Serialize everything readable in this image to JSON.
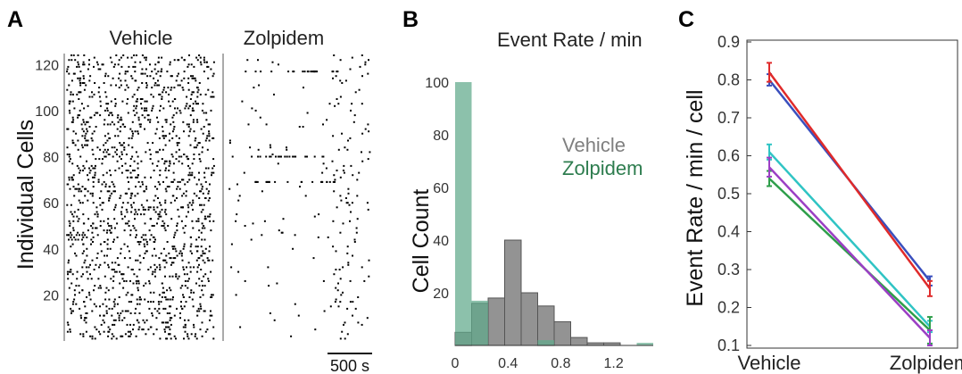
{
  "panel_labels": [
    "A",
    "B",
    "C"
  ],
  "colors": {
    "vehicle_hist": "#808080",
    "zolpidem_hist": "#5fa98a",
    "zolpidem_legend": "#2e7d4f",
    "vehicle_legend": "#7f7f7f"
  },
  "chart_data": [
    {
      "type": "scatter",
      "panel": "A",
      "subtitles": [
        "Vehicle",
        "Zolpidem"
      ],
      "ylabel": "Individual Cells",
      "ylim": [
        0,
        124
      ],
      "yticks": [
        "20",
        "40",
        "60",
        "80",
        "100",
        "120"
      ],
      "n_cells": 124,
      "scalebar_label": "500 s",
      "events_per_cell": {
        "Vehicle": 12,
        "Zolpidem": "sparse"
      }
    },
    {
      "type": "bar",
      "panel": "B",
      "title": "Event Rate / min",
      "ylabel": "Cell Count",
      "xticks": [
        "0",
        "0.4",
        "0.8",
        "1.2"
      ],
      "yticks": [
        "20",
        "40",
        "60",
        "80",
        "100"
      ],
      "xlim": [
        0,
        1.5
      ],
      "ylim": [
        0,
        100
      ],
      "bin_width": 0.125,
      "series": [
        {
          "name": "Vehicle",
          "values": [
            5,
            16,
            18,
            40,
            20,
            15,
            9,
            3,
            1,
            1,
            0,
            0
          ]
        },
        {
          "name": "Zolpidem",
          "values": [
            100,
            17,
            0,
            0,
            0,
            2,
            0,
            0,
            0,
            0,
            0,
            1
          ]
        }
      ]
    },
    {
      "type": "line",
      "panel": "C",
      "ylabel": "Event Rate / min / cell",
      "categories": [
        "Vehicle",
        "Zolpidem"
      ],
      "ylim": [
        0.1,
        0.9
      ],
      "yticks": [
        "0.1",
        "0.2",
        "0.3",
        "0.4",
        "0.5",
        "0.6",
        "0.7",
        "0.8",
        "0.9"
      ],
      "series": [
        {
          "color": "#3a4fbd",
          "values": [
            0.8,
            0.27
          ],
          "err": [
            0.015,
            0.012
          ]
        },
        {
          "color": "#e02a2a",
          "values": [
            0.82,
            0.25
          ],
          "err": [
            0.025,
            0.02
          ]
        },
        {
          "color": "#2fc4c4",
          "values": [
            0.61,
            0.15
          ],
          "err": [
            0.02,
            0.015
          ]
        },
        {
          "color": "#2e9e4a",
          "values": [
            0.54,
            0.14
          ],
          "err": [
            0.02,
            0.035
          ]
        },
        {
          "color": "#9b3fc4",
          "values": [
            0.57,
            0.12
          ],
          "err": [
            0.025,
            0.02
          ]
        }
      ]
    }
  ]
}
